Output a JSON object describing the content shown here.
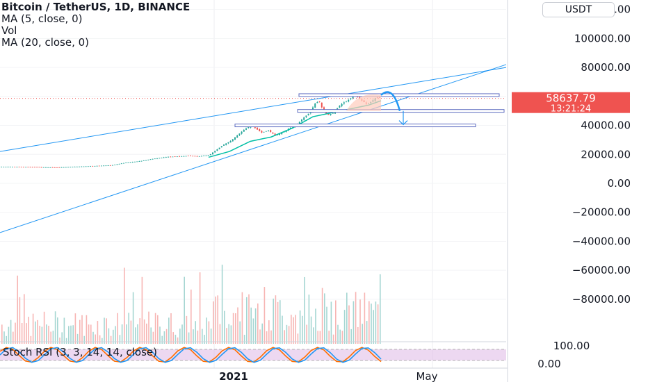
{
  "legend": {
    "title": "Bitcoin / TetherUS, 1D, BINANCE",
    "ma5": "MA (5, close, 0)",
    "vol": "Vol",
    "ma20": "MA (20, close, 0)"
  },
  "currency_button": "USDT",
  "stoch_label": "Stoch RSI (3, 3, 14, 14, close)",
  "colors": {
    "up": "#26a69a",
    "down": "#ef5350",
    "trendline": "#2196f3",
    "ma": "#00bfa5",
    "price_label": "#ef5350",
    "stoch_bg": "#e1bee7",
    "stoch_k": "#2196f3",
    "stoch_d": "#ff6d00"
  },
  "chart_data": {
    "type": "candlestick",
    "symbol": "Bitcoin / TetherUS",
    "interval": "1D",
    "exchange": "BINANCE",
    "y_ticks": [
      "120000.00",
      "100000.00",
      "80000.00",
      "60000.00",
      "40000.00",
      "20000.00",
      "0.00",
      "−20000.00",
      "−40000.00",
      "−60000.00",
      "−80000.00"
    ],
    "ylim": [
      -90000,
      142000
    ],
    "x_ticks": [
      "2021",
      "May"
    ],
    "last_price": "58637.79",
    "countdown": "13:21:24",
    "stoch_ticks": [
      "100.00",
      "0.00"
    ],
    "price_path": [
      [
        0,
        11500
      ],
      [
        40,
        11300
      ],
      [
        80,
        11000
      ],
      [
        120,
        11700
      ],
      [
        160,
        12500
      ],
      [
        180,
        14300
      ],
      [
        200,
        15300
      ],
      [
        220,
        17000
      ],
      [
        240,
        18300
      ],
      [
        255,
        18600
      ],
      [
        270,
        19000
      ],
      [
        285,
        18700
      ],
      [
        300,
        19500
      ],
      [
        310,
        23000
      ],
      [
        320,
        26500
      ],
      [
        330,
        29000
      ],
      [
        340,
        33000
      ],
      [
        350,
        37000
      ],
      [
        360,
        40000
      ],
      [
        368,
        37500
      ],
      [
        375,
        35000
      ],
      [
        385,
        36500
      ],
      [
        395,
        33000
      ],
      [
        405,
        35000
      ],
      [
        415,
        38000
      ],
      [
        425,
        40000
      ],
      [
        435,
        45000
      ],
      [
        445,
        49000
      ],
      [
        452,
        55000
      ],
      [
        458,
        57000
      ],
      [
        463,
        51000
      ],
      [
        470,
        47000
      ],
      [
        478,
        48500
      ],
      [
        486,
        53000
      ],
      [
        494,
        56000
      ],
      [
        502,
        58000
      ],
      [
        508,
        61000
      ],
      [
        514,
        59000
      ],
      [
        520,
        57000
      ],
      [
        526,
        55000
      ],
      [
        532,
        56000
      ],
      [
        538,
        58500
      ],
      [
        544,
        59500
      ],
      [
        548,
        58637.79
      ]
    ],
    "ma_path": [
      [
        300,
        18000
      ],
      [
        330,
        22000
      ],
      [
        360,
        29000
      ],
      [
        390,
        32000
      ],
      [
        420,
        38000
      ],
      [
        450,
        46000
      ],
      [
        480,
        49000
      ],
      [
        510,
        52000
      ],
      [
        530,
        54000
      ],
      [
        548,
        57000
      ]
    ],
    "horizontal_levels": [
      {
        "price": 60900,
        "x_start": 430,
        "x_end": 718
      },
      {
        "price": 50000,
        "x_start": 428,
        "x_end": 725
      },
      {
        "price": 40000,
        "x_start": 338,
        "x_end": 684
      }
    ],
    "trendlines": [
      {
        "from": [
          0,
          22000
        ],
        "to": [
          728,
          80000
        ]
      },
      {
        "from": [
          0,
          -34000
        ],
        "to": [
          728,
          82000
        ]
      }
    ],
    "projection_arc": {
      "from": [
        548,
        60900
      ],
      "peak": [
        553,
        61500
      ],
      "to": [
        575,
        50000
      ]
    },
    "target_arrow": {
      "from": [
        580,
        50000
      ],
      "to": [
        580,
        40500
      ]
    },
    "volume_ylim": [
      0,
      100
    ],
    "stochastic": {
      "k": [
        80,
        20,
        90,
        10,
        85,
        15,
        95,
        20,
        70
      ],
      "d": [
        70,
        30,
        80,
        20,
        75,
        25,
        85,
        30,
        60
      ]
    }
  }
}
